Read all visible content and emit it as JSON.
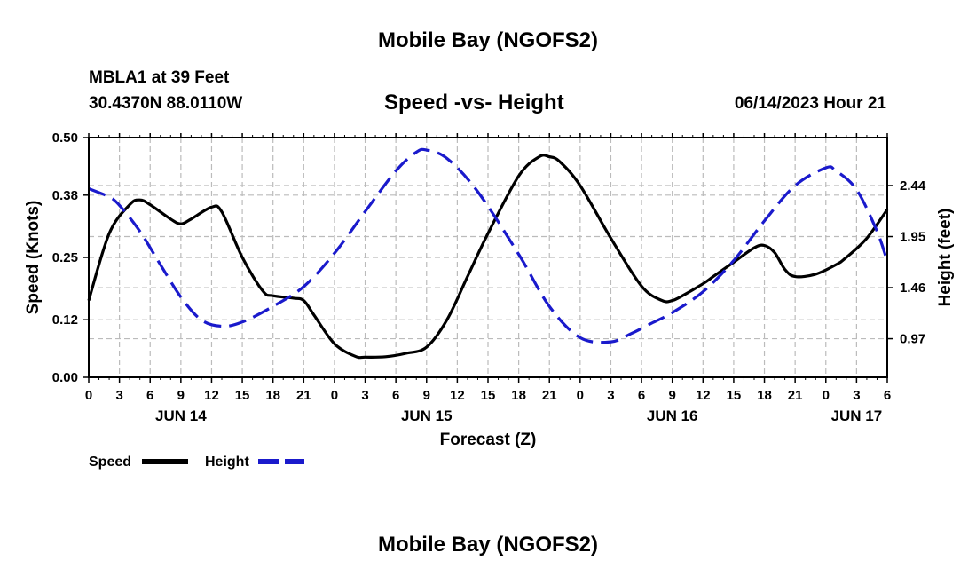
{
  "title": "Mobile Bay (NGOFS2)",
  "footer_title": "Mobile Bay (NGOFS2)",
  "station": {
    "name": "MBLA1 at 39 Feet",
    "coords": "30.4370N  88.0110W"
  },
  "timestamp": "06/14/2023 Hour 21",
  "colors": {
    "speed": "#000000",
    "height": "#1a1acc",
    "grid": "#bbbbbb"
  },
  "chart_data": {
    "type": "line",
    "title": "Speed -vs- Height",
    "xlabel": "Forecast (Z)",
    "ylabel": "Speed (Knots)",
    "y2label": "Height (feet)",
    "x_unit": "hours from Jun 14 00Z",
    "xlim": [
      0,
      78
    ],
    "ylim": [
      0,
      0.5
    ],
    "y2lim": [
      0.6,
      2.9
    ],
    "y_ticks": [
      0.0,
      0.12,
      0.25,
      0.38,
      0.5
    ],
    "y_tick_labels": [
      "0.00",
      "0.12",
      "0.25",
      "0.38",
      "0.50"
    ],
    "y2_ticks": [
      0.97,
      1.46,
      1.95,
      2.44
    ],
    "y2_tick_labels": [
      "0.97",
      "1.46",
      "1.95",
      "2.44"
    ],
    "x_ticks": [
      0,
      3,
      6,
      9,
      12,
      15,
      18,
      21,
      24,
      27,
      30,
      33,
      36,
      39,
      42,
      45,
      48,
      51,
      54,
      57,
      60,
      63,
      66,
      69,
      72,
      75,
      78
    ],
    "x_tick_labels": [
      "0",
      "3",
      "6",
      "9",
      "12",
      "15",
      "18",
      "21",
      "0",
      "3",
      "6",
      "9",
      "12",
      "15",
      "18",
      "21",
      "0",
      "3",
      "6",
      "9",
      "12",
      "15",
      "18",
      "21",
      "0",
      "3",
      "6"
    ],
    "day_labels": [
      {
        "x": 9,
        "label": "JUN 14"
      },
      {
        "x": 33,
        "label": "JUN 15"
      },
      {
        "x": 57,
        "label": "JUN 16"
      },
      {
        "x": 75,
        "label": "JUN 17"
      }
    ],
    "grid": true,
    "legend_position": "bottom-left",
    "series": [
      {
        "name": "Speed",
        "axis": "left",
        "style": "solid",
        "x": [
          0,
          2,
          4,
          5,
          6,
          8,
          9,
          10,
          12,
          13,
          15,
          17,
          18,
          20,
          21,
          22,
          24,
          26,
          27,
          29,
          31,
          33,
          35,
          37,
          39,
          42,
          44,
          45,
          46,
          48,
          51,
          54,
          56,
          57,
          58,
          60,
          61,
          63,
          65,
          66,
          67,
          68,
          69,
          71,
          73,
          74,
          76,
          78
        ],
        "values": [
          0.16,
          0.3,
          0.36,
          0.37,
          0.36,
          0.33,
          0.32,
          0.33,
          0.355,
          0.345,
          0.25,
          0.18,
          0.17,
          0.165,
          0.16,
          0.13,
          0.07,
          0.044,
          0.042,
          0.043,
          0.05,
          0.063,
          0.12,
          0.21,
          0.3,
          0.42,
          0.46,
          0.46,
          0.45,
          0.4,
          0.29,
          0.19,
          0.16,
          0.16,
          0.17,
          0.195,
          0.21,
          0.24,
          0.27,
          0.275,
          0.26,
          0.225,
          0.21,
          0.215,
          0.235,
          0.25,
          0.29,
          0.35
        ]
      },
      {
        "name": "Height",
        "axis": "right",
        "style": "dashed",
        "x": [
          0,
          2,
          3,
          5,
          7,
          9,
          11,
          13,
          15,
          18,
          21,
          24,
          27,
          30,
          32,
          33,
          35,
          38,
          42,
          45,
          48,
          51,
          53,
          55,
          57,
          60,
          63,
          66,
          69,
          72,
          73,
          75,
          77,
          78
        ],
        "values": [
          2.41,
          2.33,
          2.25,
          2.0,
          1.68,
          1.37,
          1.15,
          1.09,
          1.13,
          1.28,
          1.47,
          1.79,
          2.19,
          2.58,
          2.76,
          2.78,
          2.7,
          2.38,
          1.78,
          1.28,
          0.98,
          0.94,
          1.02,
          1.12,
          1.22,
          1.42,
          1.72,
          2.1,
          2.44,
          2.61,
          2.58,
          2.4,
          2.0,
          1.71
        ]
      }
    ]
  }
}
